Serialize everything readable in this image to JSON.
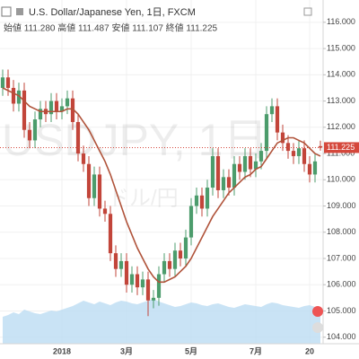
{
  "chart_data": {
    "type": "candlestick",
    "title": "U.S. Dollar/Japanese Yen, 1日, FXCM",
    "subtitle": "始値 111.280  高値 111.487  安値 111.107  終値 111.225",
    "watermark": "USDJPY, 1日",
    "watermark_sub": "ドル/円",
    "categories": [
      null,
      null,
      null,
      null,
      null,
      null,
      null,
      null,
      null,
      null,
      null,
      "2018",
      null,
      null,
      null,
      null,
      null,
      null,
      null,
      null,
      null,
      null,
      null,
      "3月",
      null,
      null,
      null,
      null,
      null,
      null,
      null,
      null,
      null,
      null,
      null,
      "5月",
      null,
      null,
      null,
      null,
      null,
      null,
      null,
      null,
      null,
      null,
      null,
      "7月",
      null,
      null,
      null,
      null,
      null,
      null,
      null,
      null,
      null,
      "20",
      null,
      null
    ],
    "open": [
      113.5,
      113.9,
      113.5,
      112.9,
      113.4,
      111.9,
      111.5,
      112.3,
      112.7,
      112.5,
      113.0,
      112.6,
      112.8,
      113.1,
      112.2,
      111.0,
      110.6,
      109.3,
      110.2,
      108.9,
      108.7,
      107.2,
      106.6,
      106.9,
      106.0,
      106.4,
      105.9,
      106.2,
      105.4,
      105.5,
      106.4,
      106.9,
      106.6,
      107.3,
      107.0,
      107.8,
      109.0,
      109.4,
      108.9,
      109.7,
      110.9,
      109.6,
      110.1,
      109.7,
      110.6,
      110.3,
      110.9,
      110.4,
      110.7,
      111.1,
      112.5,
      112.8,
      111.8,
      111.4,
      111.1,
      110.9,
      111.2,
      110.6,
      110.2,
      111.28
    ],
    "high": [
      114.2,
      114.2,
      113.8,
      113.7,
      113.7,
      112.2,
      112.6,
      113.0,
      113.0,
      113.3,
      113.3,
      113.1,
      113.4,
      113.4,
      112.5,
      111.3,
      110.9,
      110.5,
      110.5,
      109.2,
      109.0,
      107.5,
      107.2,
      107.2,
      106.7,
      106.7,
      106.5,
      106.5,
      105.8,
      106.7,
      107.2,
      107.2,
      107.6,
      107.6,
      108.1,
      109.3,
      109.7,
      109.7,
      110.0,
      111.2,
      111.2,
      110.4,
      110.4,
      110.9,
      110.9,
      111.2,
      111.2,
      111.0,
      111.4,
      112.8,
      113.1,
      113.1,
      112.1,
      111.7,
      111.4,
      111.5,
      111.5,
      110.9,
      111.0,
      111.487
    ],
    "low": [
      113.2,
      113.2,
      112.6,
      112.6,
      111.6,
      111.2,
      111.2,
      112.0,
      112.2,
      112.2,
      112.3,
      112.3,
      112.5,
      111.9,
      110.7,
      110.3,
      109.0,
      109.0,
      108.6,
      108.4,
      106.9,
      106.3,
      106.3,
      105.7,
      105.7,
      105.6,
      105.6,
      104.8,
      105.1,
      105.2,
      106.1,
      106.3,
      106.3,
      106.7,
      106.7,
      107.5,
      108.7,
      108.6,
      108.6,
      109.4,
      109.3,
      109.3,
      109.4,
      109.4,
      110.0,
      110.0,
      110.1,
      110.1,
      110.4,
      110.8,
      112.2,
      111.5,
      111.1,
      110.8,
      110.6,
      110.6,
      110.3,
      109.9,
      109.9,
      111.107
    ],
    "close": [
      113.9,
      113.5,
      112.9,
      113.4,
      111.9,
      111.5,
      112.3,
      112.7,
      112.5,
      113.0,
      112.6,
      112.8,
      113.1,
      112.2,
      111.0,
      110.6,
      109.3,
      110.2,
      108.9,
      108.7,
      107.2,
      106.6,
      106.9,
      106.0,
      106.4,
      105.9,
      106.2,
      105.4,
      105.5,
      106.4,
      106.9,
      106.6,
      107.3,
      107.0,
      107.8,
      109.0,
      109.4,
      108.9,
      109.7,
      110.9,
      109.6,
      110.1,
      109.7,
      110.6,
      110.3,
      110.9,
      110.4,
      110.7,
      111.1,
      112.5,
      112.8,
      111.8,
      111.4,
      111.1,
      110.9,
      111.2,
      110.6,
      110.2,
      110.7,
      111.225
    ],
    "up_color": "#4c9c6c",
    "down_color": "#c2453a",
    "last_price_color": "#d5483c",
    "moving_average": {
      "color": "#b0533a",
      "values": [
        113.5,
        113.4,
        113.3,
        113.2,
        113.0,
        112.8,
        112.7,
        112.6,
        112.6,
        112.6,
        112.6,
        112.6,
        112.7,
        112.7,
        112.5,
        112.2,
        111.9,
        111.5,
        111.1,
        110.7,
        110.2,
        109.6,
        109.0,
        108.4,
        107.9,
        107.4,
        107.0,
        106.6,
        106.3,
        106.1,
        106.1,
        106.2,
        106.3,
        106.5,
        106.7,
        107.0,
        107.4,
        107.8,
        108.2,
        108.6,
        108.9,
        109.2,
        109.5,
        109.7,
        109.9,
        110.1,
        110.2,
        110.4,
        110.5,
        110.8,
        111.1,
        111.4,
        111.5,
        111.6,
        111.6,
        111.5,
        111.4,
        111.2,
        111.0,
        110.9
      ]
    },
    "volume": {
      "color": "#bcdcf2",
      "ylim": [
        0,
        100
      ],
      "values": [
        30,
        32,
        35,
        33,
        38,
        36,
        34,
        33,
        35,
        37,
        36,
        38,
        40,
        42,
        45,
        48,
        46,
        44,
        47,
        45,
        43,
        46,
        48,
        47,
        45,
        44,
        46,
        48,
        50,
        47,
        45,
        43,
        41,
        42,
        44,
        46,
        45,
        43,
        42,
        44,
        45,
        43,
        41,
        40,
        42,
        44,
        43,
        42,
        41,
        44,
        46,
        45,
        43,
        42,
        41,
        40,
        42,
        43,
        41,
        40
      ]
    },
    "ylim": [
      103.75,
      116.85
    ],
    "yticks": [
      {
        "value": 104,
        "label": "104.000"
      },
      {
        "value": 105,
        "label": "105.000"
      },
      {
        "value": 106,
        "label": "106.000"
      },
      {
        "value": 107,
        "label": "107.000"
      },
      {
        "value": 108,
        "label": "108.000"
      },
      {
        "value": 109,
        "label": "109.000"
      },
      {
        "value": 110,
        "label": "110.000"
      },
      {
        "value": 111,
        "label": "111.000"
      },
      {
        "value": 112,
        "label": "112.000"
      },
      {
        "value": 113,
        "label": "113.000"
      },
      {
        "value": 114,
        "label": "114.000"
      },
      {
        "value": 115,
        "label": "115.000"
      },
      {
        "value": 116,
        "label": "116.000"
      }
    ],
    "grid": true
  }
}
